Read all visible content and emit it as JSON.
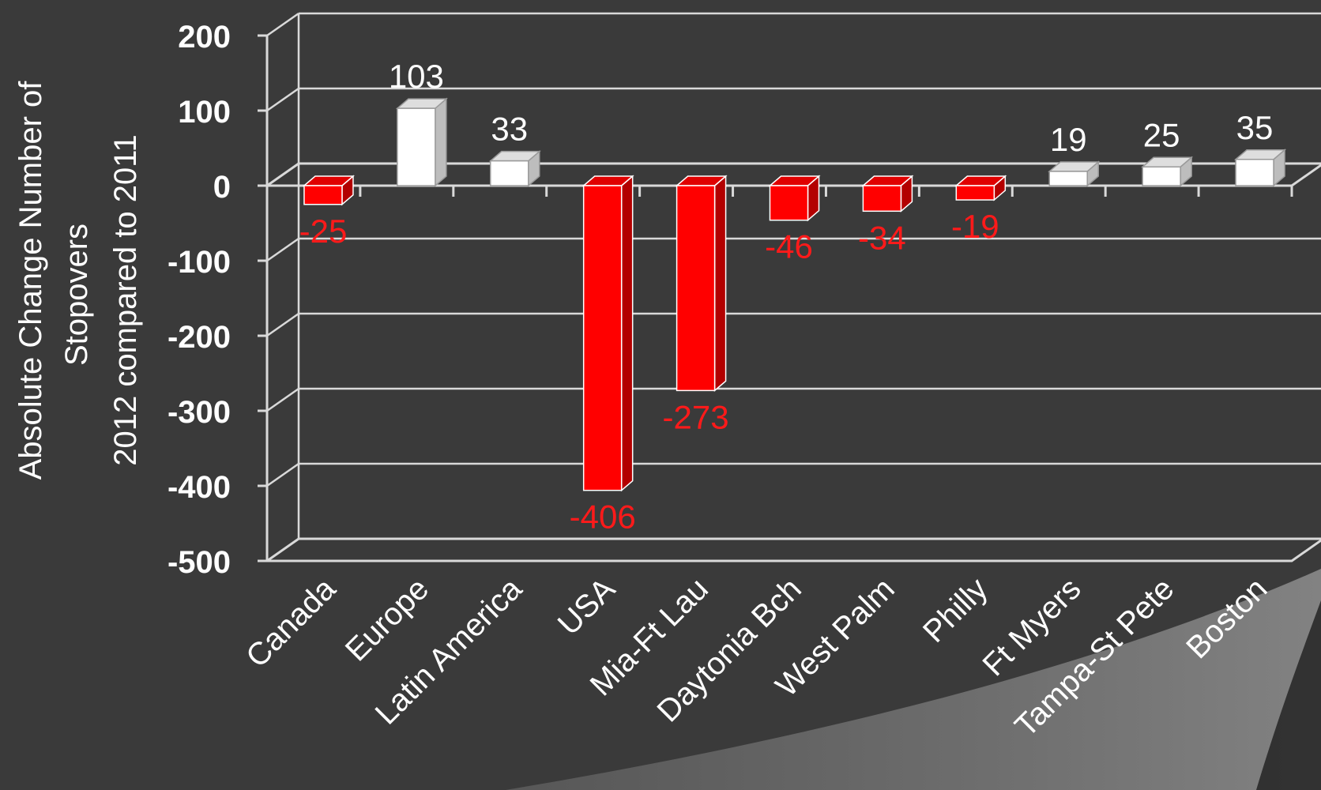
{
  "chart_data": {
    "type": "bar",
    "style": "3d-column",
    "title": "",
    "ylabel": [
      "Absolute Change Number of",
      "Stopovers",
      "2012 compared to 2011"
    ],
    "xlabel": "",
    "ylim": [
      -500,
      200
    ],
    "yticks": [
      "200",
      "100",
      "0",
      "-100",
      "-200",
      "-300",
      "-400",
      "-500"
    ],
    "grid": true,
    "legend": "none",
    "categories": [
      "Canada",
      "Europe",
      "Latin America",
      "USA",
      "Mia-Ft Lau",
      "Daytonia Bch",
      "West Palm",
      "Philly",
      "Ft Myers",
      "Tampa-St Pete",
      "Boston"
    ],
    "values": [
      -25,
      103,
      33,
      -406,
      -273,
      -46,
      -34,
      -19,
      19,
      25,
      35
    ],
    "data_labels": [
      "-25",
      "103",
      "33",
      "-406",
      "-273",
      "-46",
      "-34",
      "-19",
      "19",
      "25",
      "35"
    ],
    "colors": {
      "negative": "#ff0000",
      "positive": "#ffffff",
      "background": "#3a3a3a",
      "grid": "#d9d9d9",
      "negative_label": "#ff1a1a",
      "positive_label": "#ffffff"
    }
  }
}
